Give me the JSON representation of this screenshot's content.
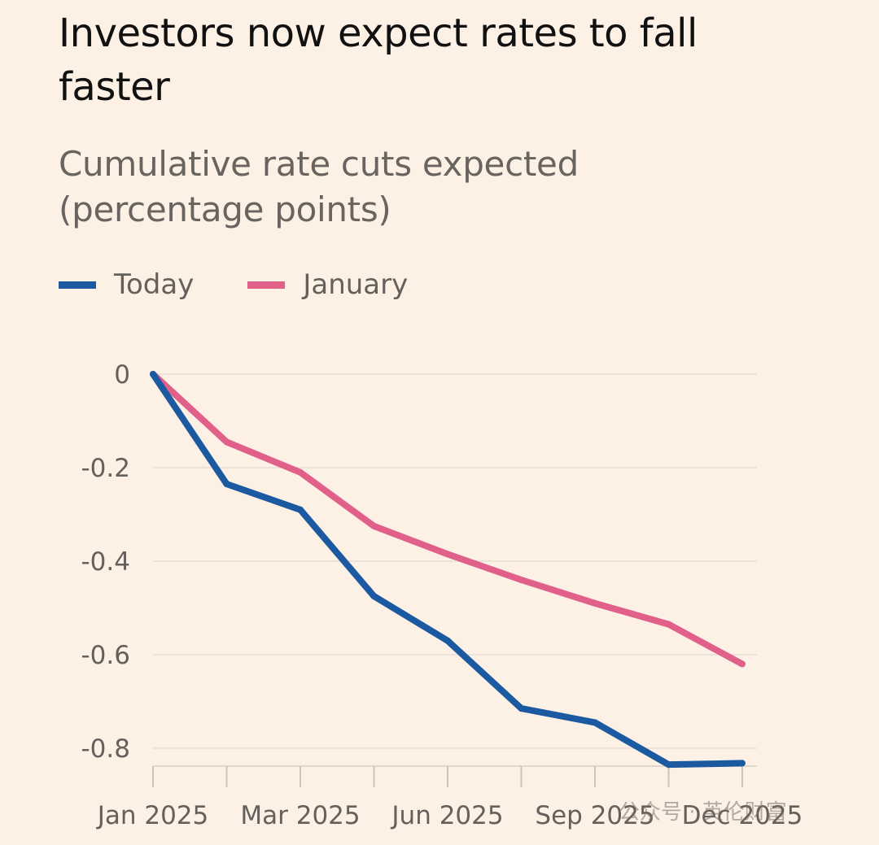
{
  "chart_data": {
    "type": "line",
    "title": "Investors now expect rates to fall faster",
    "subtitle": "Cumulative rate cuts expected (percentage points)",
    "xlabel": "",
    "ylabel": "",
    "x_tick_labels": [
      "Jan 2025",
      "Mar 2025",
      "Jun 2025",
      "Sep 2025",
      "Dec 2025"
    ],
    "x_tick_positions": [
      0,
      2,
      4,
      6,
      8
    ],
    "xlim": [
      0,
      8
    ],
    "ylim": [
      -0.85,
      0
    ],
    "y_ticks": [
      0,
      -0.2,
      -0.4,
      -0.6,
      -0.8
    ],
    "y_tick_labels": [
      "0",
      "-0.2",
      "-0.4",
      "-0.6",
      "-0.8"
    ],
    "grid": true,
    "legend_position": "top-left",
    "series": [
      {
        "name": "Today",
        "color": "#1b5aa0",
        "x": [
          0,
          1,
          2,
          3,
          4,
          5,
          6,
          7,
          8
        ],
        "values": [
          0,
          -0.235,
          -0.29,
          -0.475,
          -0.57,
          -0.715,
          -0.745,
          -0.835,
          -0.832
        ]
      },
      {
        "name": "January",
        "color": "#e0608a",
        "x": [
          0,
          1,
          2,
          3,
          4,
          5,
          6,
          7,
          8
        ],
        "values": [
          0,
          -0.145,
          -0.21,
          -0.325,
          -0.385,
          -0.44,
          -0.49,
          -0.535,
          -0.62
        ]
      }
    ]
  },
  "watermark": "公众号 · 英伦财富"
}
